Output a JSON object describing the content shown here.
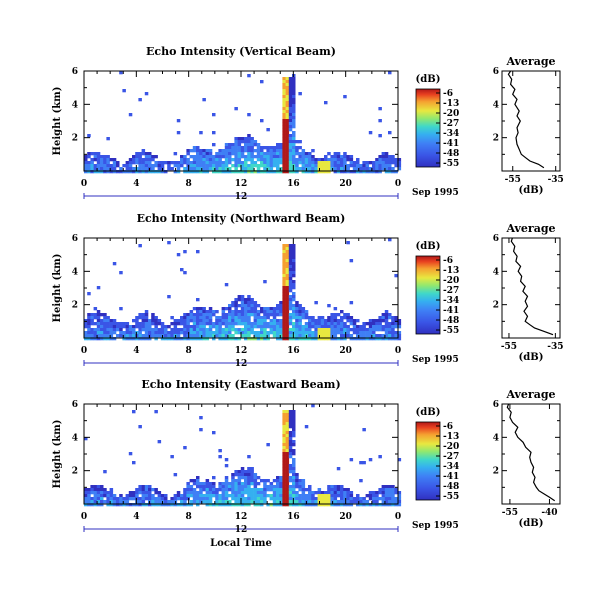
{
  "chart_data": [
    {
      "type": "heatmap",
      "title": "Echo Intensity (Vertical Beam)",
      "ylabel": "Height (km)",
      "x_ticks": [
        "0",
        "4",
        "8",
        "12",
        "16",
        "20",
        "0"
      ],
      "xlim": [
        0,
        24
      ],
      "y_ticks": [
        "6",
        "4",
        "2"
      ],
      "ylim": [
        0,
        6
      ],
      "date_label": "12",
      "date_suffix": "Sep 1995",
      "colorbar": {
        "unit": "(dB)",
        "ticks": [
          "-6",
          "-13",
          "-20",
          "-27",
          "-34",
          "-41",
          "-48",
          "-55"
        ]
      },
      "average": {
        "title": "Average",
        "xlabel": "(dB)",
        "x_ticks": [
          "-55",
          "-35"
        ],
        "xlim": [
          -60,
          -33
        ],
        "y_ticks": [
          "6",
          "4",
          "2"
        ],
        "profile": [
          [
            -40.5,
            0.2
          ],
          [
            -43,
            0.4
          ],
          [
            -47,
            0.6
          ],
          [
            -49,
            0.8
          ],
          [
            -51,
            1.0
          ],
          [
            -52,
            1.3
          ],
          [
            -53,
            1.6
          ],
          [
            -53.5,
            2.0
          ],
          [
            -52.5,
            2.3
          ],
          [
            -53,
            2.6
          ],
          [
            -51.5,
            3.0
          ],
          [
            -53,
            3.3
          ],
          [
            -52,
            3.6
          ],
          [
            -54,
            4.0
          ],
          [
            -53,
            4.3
          ],
          [
            -55,
            4.6
          ],
          [
            -54,
            4.9
          ],
          [
            -56,
            5.2
          ],
          [
            -55.5,
            5.5
          ],
          [
            -57,
            5.8
          ],
          [
            -56,
            6.0
          ]
        ]
      }
    },
    {
      "type": "heatmap",
      "title": "Echo Intensity (Northward Beam)",
      "ylabel": "Height (km)",
      "x_ticks": [
        "0",
        "4",
        "8",
        "12",
        "16",
        "20",
        "0"
      ],
      "xlim": [
        0,
        24
      ],
      "y_ticks": [
        "6",
        "4",
        "2"
      ],
      "ylim": [
        0,
        6
      ],
      "date_label": "12",
      "date_suffix": "Sep 1995",
      "colorbar": {
        "unit": "(dB)",
        "ticks": [
          "-6",
          "-13",
          "-20",
          "-27",
          "-34",
          "-41",
          "-48",
          "-55"
        ]
      },
      "average": {
        "title": "Average",
        "xlabel": "(dB)",
        "x_ticks": [
          "-55",
          "-35"
        ],
        "xlim": [
          -58,
          -33
        ],
        "y_ticks": [
          "6",
          "4",
          "2"
        ],
        "profile": [
          [
            -36,
            0.2
          ],
          [
            -40,
            0.4
          ],
          [
            -44,
            0.6
          ],
          [
            -46,
            0.8
          ],
          [
            -48,
            1.0
          ],
          [
            -47,
            1.3
          ],
          [
            -48.5,
            1.6
          ],
          [
            -47,
            1.9
          ],
          [
            -48,
            2.2
          ],
          [
            -47,
            2.5
          ],
          [
            -49,
            2.8
          ],
          [
            -48,
            3.1
          ],
          [
            -50,
            3.4
          ],
          [
            -49.5,
            3.7
          ],
          [
            -51,
            4.0
          ],
          [
            -50,
            4.3
          ],
          [
            -52,
            4.6
          ],
          [
            -51.5,
            4.9
          ],
          [
            -53,
            5.2
          ],
          [
            -52.5,
            5.5
          ],
          [
            -54,
            5.8
          ],
          [
            -53.5,
            6.0
          ]
        ]
      }
    },
    {
      "type": "heatmap",
      "title": "Echo Intensity (Eastward Beam)",
      "ylabel": "Height (km)",
      "xlabel": "Local Time",
      "x_ticks": [
        "0",
        "4",
        "8",
        "12",
        "16",
        "20",
        "0"
      ],
      "xlim": [
        0,
        24
      ],
      "y_ticks": [
        "6",
        "4",
        "2"
      ],
      "ylim": [
        0,
        6
      ],
      "date_label": "12",
      "date_suffix": "Sep 1995",
      "colorbar": {
        "unit": "(dB)",
        "ticks": [
          "-6",
          "-13",
          "-20",
          "-27",
          "-34",
          "-41",
          "-48",
          "-55"
        ]
      },
      "average": {
        "title": "Average",
        "xlabel": "(dB)",
        "x_ticks": [
          "-55",
          "-40"
        ],
        "xlim": [
          -58,
          -36
        ],
        "y_ticks": [
          "6",
          "4",
          "2"
        ],
        "profile": [
          [
            -38,
            0.2
          ],
          [
            -40,
            0.4
          ],
          [
            -42,
            0.6
          ],
          [
            -44,
            0.8
          ],
          [
            -45,
            1.0
          ],
          [
            -46,
            1.3
          ],
          [
            -45.5,
            1.6
          ],
          [
            -46.5,
            1.9
          ],
          [
            -46,
            2.2
          ],
          [
            -47,
            2.5
          ],
          [
            -47.5,
            2.8
          ],
          [
            -47,
            3.1
          ],
          [
            -49,
            3.4
          ],
          [
            -50,
            3.7
          ],
          [
            -52,
            4.0
          ],
          [
            -53,
            4.3
          ],
          [
            -52,
            4.6
          ],
          [
            -54,
            4.9
          ],
          [
            -55,
            5.2
          ],
          [
            -54.5,
            5.5
          ],
          [
            -56,
            5.8
          ],
          [
            -55.5,
            6.0
          ]
        ]
      }
    }
  ],
  "colors": {
    "scale": [
      "#3030c0",
      "#3a55e6",
      "#3f7ff5",
      "#35b0f0",
      "#40d8c8",
      "#90e870",
      "#e8e840",
      "#f5a030",
      "#e84020",
      "#b01818"
    ]
  }
}
